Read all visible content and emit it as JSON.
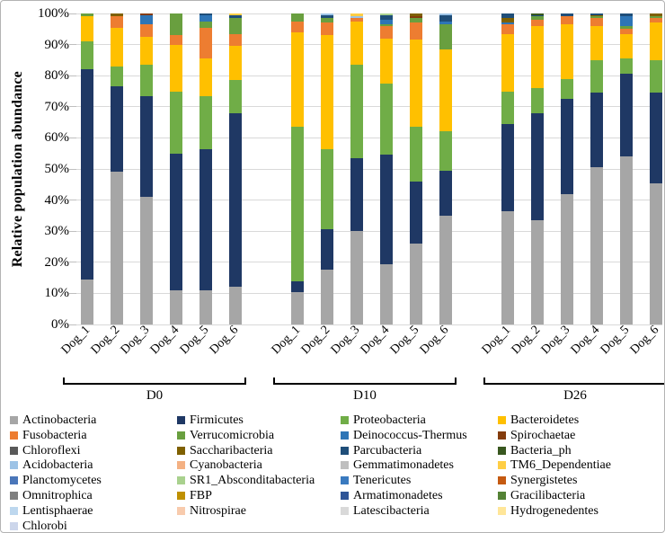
{
  "chart_data": {
    "type": "bar",
    "subtype": "stacked-percentage",
    "title": "",
    "ylabel": "Relative population abundance",
    "xlabel": "",
    "ylim": [
      0,
      100
    ],
    "y_ticks": [
      0,
      10,
      20,
      30,
      40,
      50,
      60,
      70,
      80,
      90,
      100
    ],
    "y_tick_suffix": "%",
    "grid": true,
    "legend_position": "bottom",
    "groups": [
      {
        "label": "D0"
      },
      {
        "label": "D10"
      },
      {
        "label": "D26"
      }
    ],
    "categories_per_group": [
      "Dog_1",
      "Dog_2",
      "Dog_3",
      "Dog_4",
      "Dog_5",
      "Dog_6"
    ],
    "bar_order_note": "18 values per series: D0 Dog_1-6, then D10 Dog_1-6, then D26 Dog_1-6; stacked bottom-to-top in series order; values are percent",
    "series": [
      {
        "name": "Actinobacteria",
        "color": "#a6a6a6",
        "values": [
          14.5,
          49,
          41,
          11,
          11,
          12,
          10.5,
          17.5,
          30,
          19.5,
          26,
          35,
          36.5,
          33.5,
          42,
          50.5,
          54,
          45.5
        ]
      },
      {
        "name": "Firmicutes",
        "color": "#1f3864",
        "values": [
          67.5,
          27.5,
          32.5,
          44,
          45.5,
          56,
          3.5,
          13,
          23.5,
          35,
          20,
          14.5,
          28,
          34.5,
          30.5,
          24,
          26.5,
          29
        ]
      },
      {
        "name": "Proteobacteria",
        "color": "#70ad47",
        "values": [
          9,
          6.5,
          10,
          20,
          17,
          10.5,
          49.5,
          26,
          30,
          23,
          17.5,
          12.5,
          10.5,
          8,
          6.5,
          10.5,
          5,
          10.5
        ]
      },
      {
        "name": "Bacteroidetes",
        "color": "#ffc000",
        "values": [
          8,
          12.5,
          9,
          15,
          12,
          11,
          30.5,
          36.5,
          14,
          14.5,
          28,
          26.5,
          18.5,
          20,
          17.5,
          11,
          8,
          12
        ]
      },
      {
        "name": "Fusobacteria",
        "color": "#ed7d31",
        "values": [
          0,
          3.5,
          4,
          3,
          10,
          4,
          3.5,
          4,
          1,
          4,
          5.5,
          0,
          3,
          2,
          2.5,
          2.5,
          1.5,
          1.5
        ]
      },
      {
        "name": "Verrucomicrobia",
        "color": "#699f3f",
        "values": [
          1,
          0,
          0,
          7,
          2,
          5,
          2.5,
          1.5,
          0,
          0.5,
          1.5,
          8,
          0,
          1,
          0,
          0.5,
          1,
          0.5
        ]
      },
      {
        "name": "Deinococcus-Thermus",
        "color": "#2e75b6",
        "values": [
          0,
          0,
          3,
          0,
          2,
          0,
          0,
          0,
          0,
          1.5,
          0,
          1,
          0.5,
          0,
          0,
          0,
          3,
          0
        ]
      },
      {
        "name": "Spirochaetae",
        "color": "#843c0c",
        "values": [
          0,
          0,
          0.5,
          0,
          0,
          0,
          0,
          0,
          0,
          0,
          0.5,
          0,
          0,
          0,
          0,
          0,
          0,
          0
        ]
      },
      {
        "name": "Chloroflexi",
        "color": "#595959",
        "values": [
          0,
          0,
          0,
          0,
          0,
          0,
          0,
          0,
          0,
          0,
          0,
          0,
          0,
          0,
          0,
          0,
          0,
          0
        ]
      },
      {
        "name": "Saccharibacteria",
        "color": "#7f6000",
        "values": [
          0,
          1,
          0,
          0,
          0,
          0,
          0,
          0,
          0,
          0,
          1,
          0,
          1.5,
          0,
          0,
          0.5,
          0,
          1
        ]
      },
      {
        "name": "Parcubacteria",
        "color": "#1f4e79",
        "values": [
          0,
          0,
          0,
          0,
          0.5,
          1,
          0,
          1,
          0,
          1.5,
          0,
          2,
          1.5,
          0.5,
          1,
          0.5,
          1,
          0
        ]
      },
      {
        "name": "Bacteria_ph",
        "color": "#38571f",
        "values": [
          0,
          0,
          0,
          0,
          0,
          0,
          0,
          0,
          0,
          0,
          0,
          0,
          0,
          0.5,
          0,
          0,
          0,
          0
        ]
      },
      {
        "name": "Acidobacteria",
        "color": "#9dc3e6",
        "values": [
          0,
          0,
          0,
          0,
          0,
          0,
          0,
          0.5,
          0.75,
          0,
          0,
          0.5,
          0,
          0,
          0,
          0,
          0,
          0
        ]
      },
      {
        "name": "Cyanobacteria",
        "color": "#f4b183",
        "values": [
          0,
          0,
          0,
          0,
          0,
          0,
          0,
          0,
          0,
          0,
          0,
          0,
          0,
          0,
          0,
          0,
          0,
          0
        ]
      },
      {
        "name": "Gemmatimonadetes",
        "color": "#bfbfbf",
        "values": [
          0,
          0,
          0,
          0,
          0,
          0,
          0,
          0,
          0,
          0,
          0,
          0,
          0,
          0,
          0,
          0,
          0,
          0
        ]
      },
      {
        "name": "TM6_Dependentiae",
        "color": "#ffce45",
        "values": [
          0,
          0,
          0,
          0,
          0,
          0.5,
          0,
          0,
          0.75,
          0,
          0,
          0,
          0,
          0,
          0,
          0,
          0,
          0
        ]
      },
      {
        "name": "Planctomycetes",
        "color": "#4a76b9",
        "values": [
          0,
          0,
          0,
          0,
          0,
          0,
          0,
          0,
          0,
          0,
          0,
          0,
          0,
          0,
          0,
          0,
          0,
          0
        ]
      },
      {
        "name": "SR1_Absconditabacteria",
        "color": "#a9d18e",
        "values": [
          0,
          0,
          0,
          0,
          0,
          0,
          0,
          0,
          0,
          0.5,
          0,
          0,
          0,
          0,
          0,
          0,
          0,
          0
        ]
      },
      {
        "name": "Tenericutes",
        "color": "#3a7abf",
        "values": [
          0,
          0,
          0,
          0,
          0,
          0,
          0,
          0,
          0,
          0,
          0,
          0,
          0,
          0,
          0,
          0,
          0,
          0
        ]
      },
      {
        "name": "Synergistetes",
        "color": "#c55a11",
        "values": [
          0,
          0,
          0,
          0,
          0,
          0,
          0,
          0,
          0,
          0,
          0,
          0,
          0,
          0,
          0,
          0,
          0,
          0
        ]
      },
      {
        "name": "Omnitrophica",
        "color": "#7f7f7f",
        "values": [
          0,
          0,
          0,
          0,
          0,
          0,
          0,
          0,
          0,
          0,
          0,
          0,
          0,
          0,
          0,
          0,
          0,
          0
        ]
      },
      {
        "name": "FBP",
        "color": "#bf9000",
        "values": [
          0,
          0,
          0,
          0,
          0,
          0,
          0,
          0,
          0,
          0,
          0,
          0,
          0,
          0,
          0,
          0,
          0,
          0
        ]
      },
      {
        "name": "Armatimonadetes",
        "color": "#2f5597",
        "values": [
          0,
          0,
          0,
          0,
          0,
          0,
          0,
          0,
          0,
          0,
          0,
          0,
          0,
          0,
          0,
          0,
          0,
          0
        ]
      },
      {
        "name": "Gracilibacteria",
        "color": "#548235",
        "values": [
          0,
          0,
          0,
          0,
          0,
          0,
          0,
          0,
          0,
          0,
          0,
          0,
          0,
          0,
          0,
          0,
          0,
          0
        ]
      },
      {
        "name": "Lentisphaerae",
        "color": "#bdd7ee",
        "values": [
          0,
          0,
          0,
          0,
          0,
          0,
          0,
          0,
          0,
          0,
          0,
          0,
          0,
          0,
          0,
          0,
          0,
          0
        ]
      },
      {
        "name": "Nitrospirae",
        "color": "#f8cbad",
        "values": [
          0,
          0,
          0,
          0,
          0,
          0,
          0,
          0,
          0,
          0,
          0,
          0,
          0,
          0,
          0,
          0,
          0,
          0
        ]
      },
      {
        "name": "Latescibacteria",
        "color": "#d9d9d9",
        "values": [
          0,
          0,
          0,
          0,
          0,
          0,
          0,
          0,
          0,
          0,
          0,
          0,
          0,
          0,
          0,
          0,
          0,
          0
        ]
      },
      {
        "name": "Hydrogenedentes",
        "color": "#ffe699",
        "values": [
          0,
          0,
          0,
          0,
          0,
          0,
          0,
          0,
          0,
          0,
          0,
          0,
          0,
          0,
          0,
          0,
          0,
          0
        ]
      },
      {
        "name": "Chlorobi",
        "color": "#ccd6eb",
        "values": [
          0,
          0,
          0,
          0,
          0,
          0,
          0,
          0,
          0,
          0,
          0,
          0,
          0,
          0,
          0,
          0,
          0,
          0
        ]
      }
    ]
  }
}
